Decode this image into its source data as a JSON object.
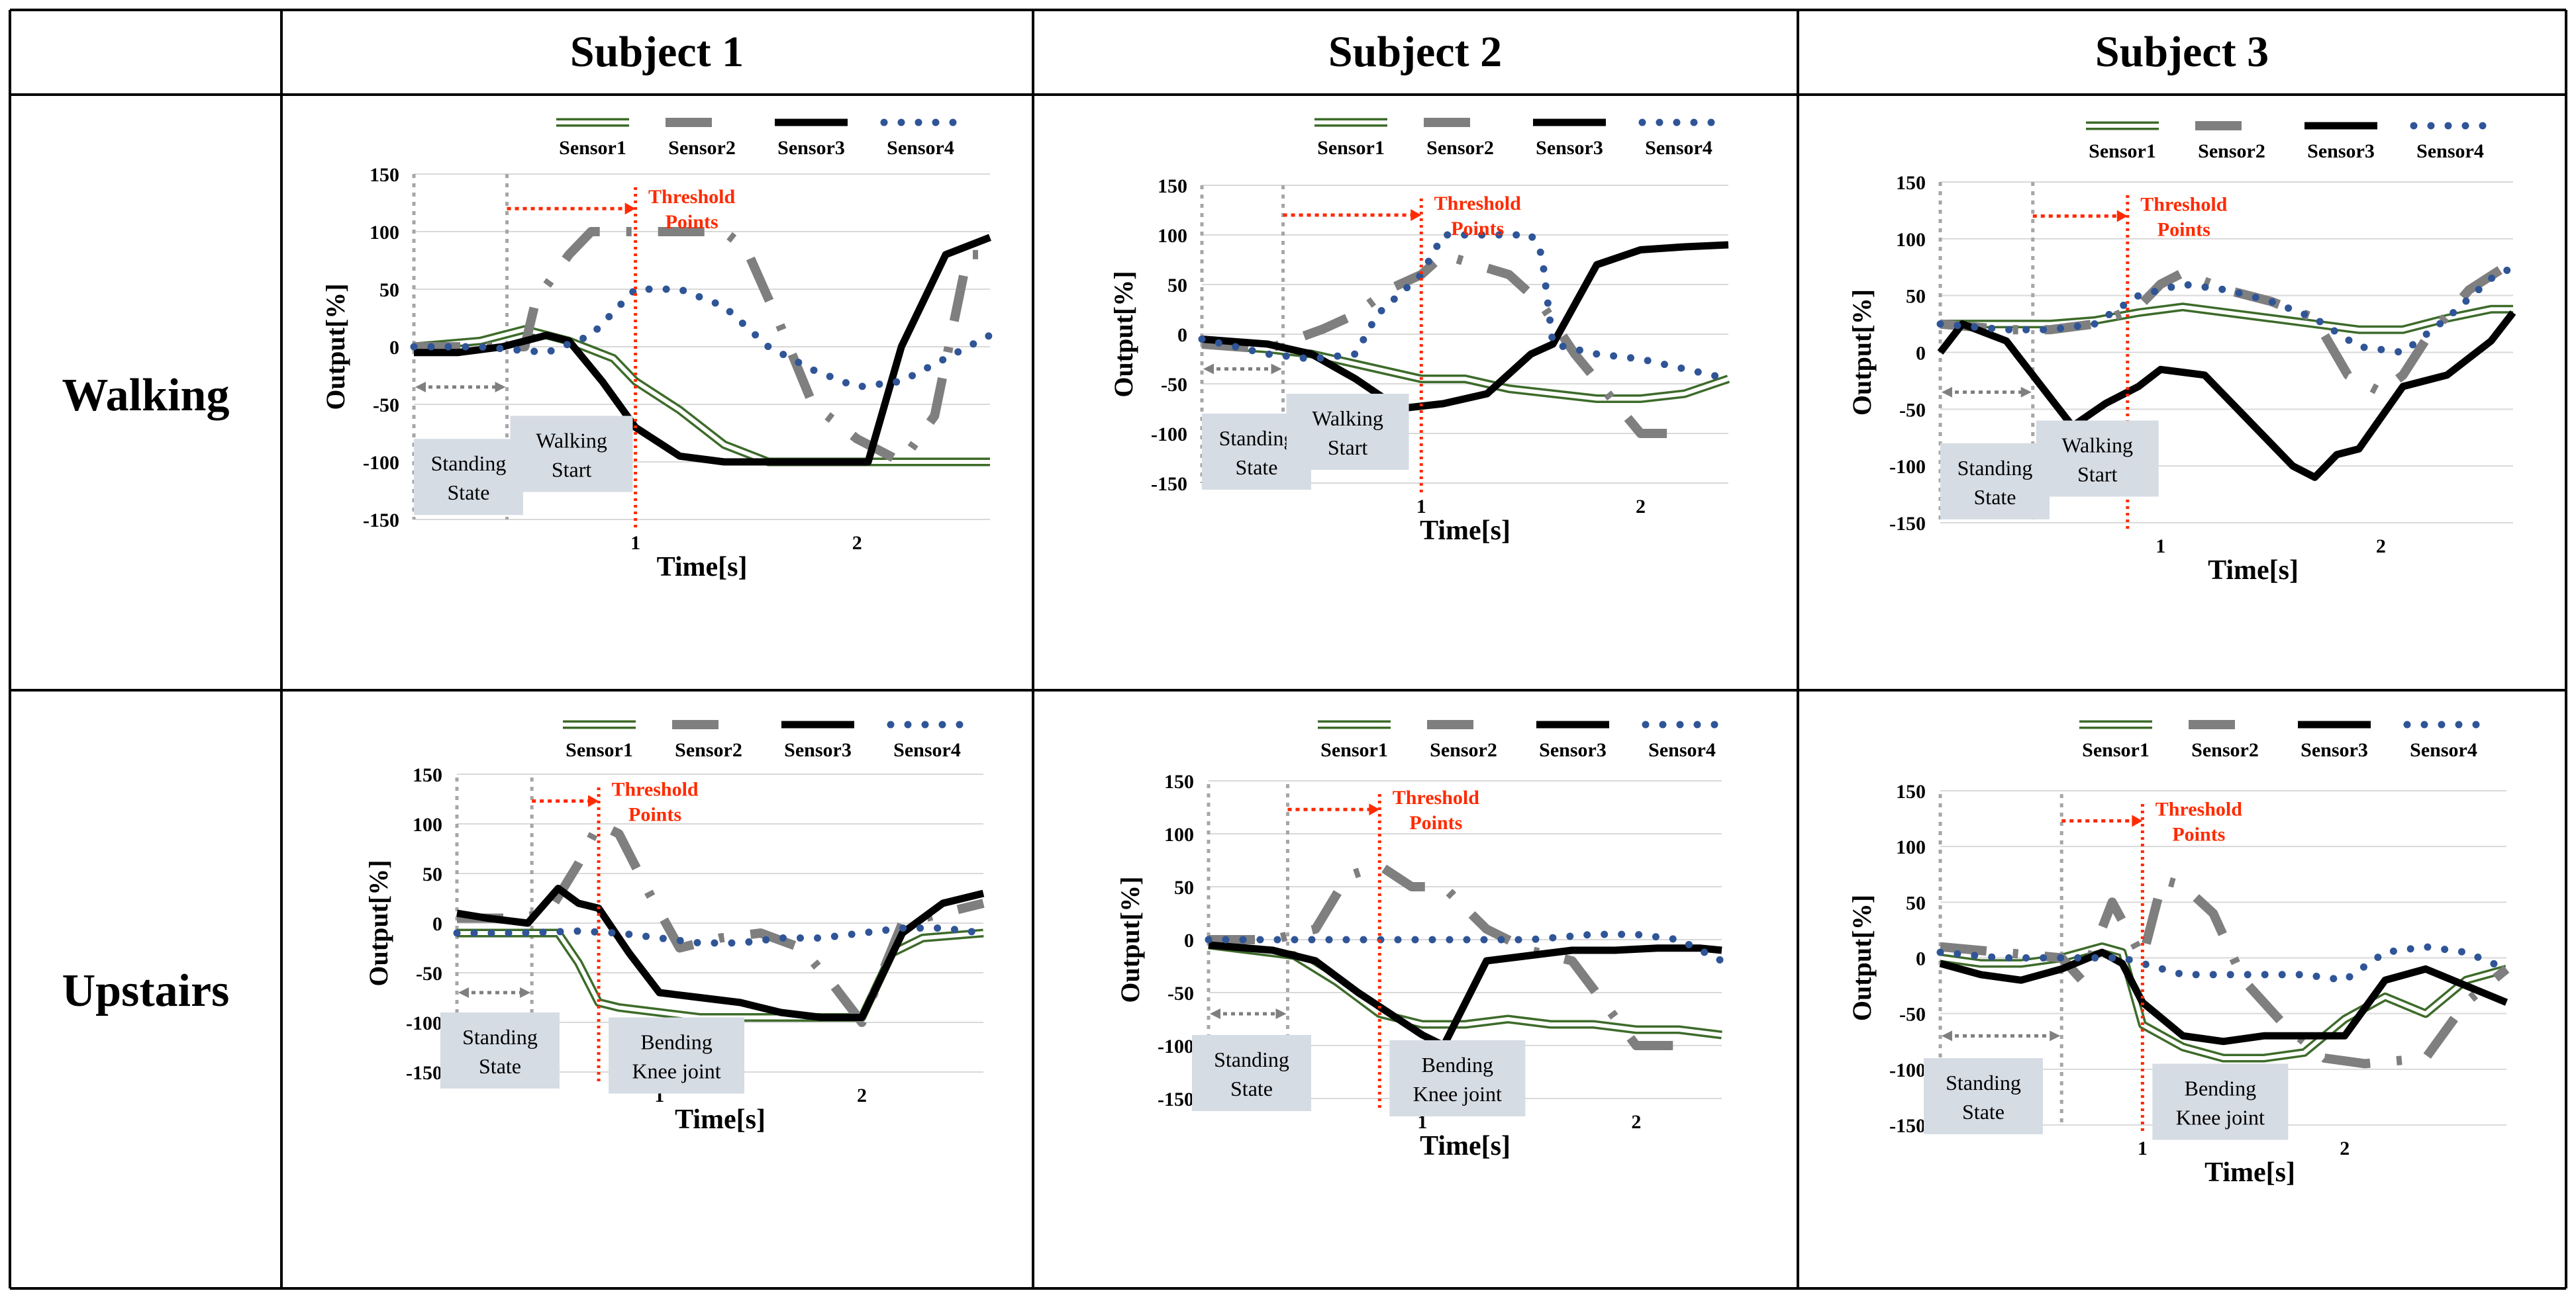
{
  "columns": [
    "",
    "Subject 1",
    "Subject 2",
    "Subject 3"
  ],
  "rows": [
    "Walking",
    "Upstairs"
  ],
  "legend": [
    "Sensor1",
    "Sensor2",
    "Sensor3",
    "Sensor4"
  ],
  "colors": {
    "sensor1": "#3d6b2a",
    "sensor2": "#7f7f7f",
    "sensor3": "#000000",
    "sensor4": "#2f5597",
    "threshold": "#ff2a00",
    "annotation_box": "#d6dce4",
    "grid": "#d9d9d9"
  },
  "chart_data": [
    {
      "type": "line",
      "panel": "Walking / Subject 1",
      "xlabel": "Time[s]",
      "ylabel": "Output[%]",
      "ylim": [
        -150,
        150
      ],
      "yticks": [
        150,
        100,
        50,
        0,
        -50,
        -100,
        -150
      ],
      "xlim": [
        0,
        2.6
      ],
      "xticks": [
        1,
        2
      ],
      "standing_x": 0,
      "start_x": 0.42,
      "threshold_x": 1.0,
      "threshold_label": [
        "Threshold",
        "Points"
      ],
      "box1": [
        "Standing",
        "State"
      ],
      "box2": [
        "Walking",
        "Start"
      ],
      "series": [
        {
          "name": "Sensor1",
          "x": [
            0,
            0.3,
            0.5,
            0.7,
            0.9,
            1.0,
            1.2,
            1.4,
            1.6,
            1.8,
            2.0,
            2.2,
            2.6
          ],
          "y": [
            0,
            5,
            15,
            5,
            -10,
            -30,
            -55,
            -85,
            -100,
            -100,
            -100,
            -100,
            -100
          ]
        },
        {
          "name": "Sensor2",
          "x": [
            0,
            0.3,
            0.5,
            0.55,
            0.7,
            0.8,
            1.0,
            1.2,
            1.4,
            1.5,
            1.65,
            1.8,
            2.0,
            2.1,
            2.2,
            2.35,
            2.5,
            2.6
          ],
          "y": [
            0,
            0,
            0,
            40,
            80,
            100,
            100,
            100,
            100,
            85,
            20,
            -50,
            -80,
            -90,
            -100,
            -60,
            80,
            80
          ]
        },
        {
          "name": "Sensor3",
          "x": [
            0,
            0.2,
            0.4,
            0.6,
            0.7,
            0.85,
            1.0,
            1.2,
            1.4,
            1.6,
            1.8,
            2.0,
            2.05,
            2.2,
            2.4,
            2.6
          ],
          "y": [
            -5,
            -5,
            0,
            10,
            5,
            -30,
            -70,
            -95,
            -100,
            -100,
            -100,
            -100,
            -100,
            0,
            80,
            95
          ]
        },
        {
          "name": "Sensor4",
          "x": [
            0,
            0.3,
            0.6,
            0.8,
            1.0,
            1.2,
            1.4,
            1.6,
            1.8,
            2.0,
            2.2,
            2.4,
            2.6
          ],
          "y": [
            0,
            0,
            -5,
            10,
            50,
            50,
            35,
            0,
            -20,
            -35,
            -30,
            -10,
            10
          ]
        }
      ]
    },
    {
      "type": "line",
      "panel": "Walking / Subject 2",
      "xlabel": "Time[s]",
      "ylabel": "Output[%]",
      "ylim": [
        -150,
        150
      ],
      "yticks": [
        150,
        100,
        50,
        0,
        -50,
        -100,
        -150
      ],
      "xlim": [
        0,
        2.4
      ],
      "xticks": [
        1,
        2
      ],
      "standing_x": 0,
      "start_x": 0.37,
      "threshold_x": 1.0,
      "threshold_label": [
        "Threshold",
        "Points"
      ],
      "box1": [
        "Standing",
        "State"
      ],
      "box2": [
        "Walking",
        "Start"
      ],
      "series": [
        {
          "name": "Sensor1",
          "x": [
            0,
            0.3,
            0.5,
            0.7,
            0.9,
            1.0,
            1.2,
            1.4,
            1.6,
            1.8,
            2.0,
            2.2,
            2.4
          ],
          "y": [
            -10,
            -15,
            -20,
            -30,
            -40,
            -45,
            -45,
            -55,
            -60,
            -65,
            -65,
            -60,
            -45
          ]
        },
        {
          "name": "Sensor2",
          "x": [
            0,
            0.3,
            0.55,
            0.7,
            0.85,
            1.0,
            1.1,
            1.25,
            1.4,
            1.55,
            1.7,
            1.85,
            2.0,
            2.2
          ],
          "y": [
            -10,
            -15,
            5,
            20,
            45,
            60,
            80,
            70,
            60,
            30,
            -20,
            -60,
            -100,
            -100
          ]
        },
        {
          "name": "Sensor3",
          "x": [
            0,
            0.3,
            0.5,
            0.7,
            0.9,
            1.1,
            1.3,
            1.5,
            1.6,
            1.8,
            2.0,
            2.2,
            2.4
          ],
          "y": [
            -5,
            -10,
            -20,
            -45,
            -75,
            -70,
            -60,
            -20,
            -10,
            70,
            85,
            88,
            90
          ]
        },
        {
          "name": "Sensor4",
          "x": [
            0,
            0.3,
            0.5,
            0.7,
            0.8,
            1.0,
            1.1,
            1.3,
            1.5,
            1.55,
            1.6,
            1.8,
            2.0,
            2.2,
            2.4
          ],
          "y": [
            -5,
            -20,
            -25,
            -20,
            20,
            60,
            100,
            100,
            100,
            80,
            -10,
            -20,
            -25,
            -35,
            -45
          ]
        }
      ]
    },
    {
      "type": "line",
      "panel": "Walking / Subject 3",
      "xlabel": "Time[s]",
      "ylabel": "Output[%]",
      "ylim": [
        -150,
        150
      ],
      "yticks": [
        150,
        100,
        50,
        0,
        -50,
        -100,
        -150
      ],
      "xlim": [
        0,
        2.6
      ],
      "xticks": [
        1,
        2
      ],
      "standing_x": 0,
      "start_x": 0.42,
      "threshold_x": 0.85,
      "threshold_label": [
        "Threshold",
        "Points"
      ],
      "box1": [
        "Standing",
        "State"
      ],
      "box2": [
        "Walking",
        "Start"
      ],
      "series": [
        {
          "name": "Sensor1",
          "x": [
            0,
            0.3,
            0.5,
            0.7,
            0.9,
            1.1,
            1.3,
            1.5,
            1.7,
            1.9,
            2.1,
            2.3,
            2.5,
            2.6
          ],
          "y": [
            25,
            25,
            25,
            28,
            35,
            40,
            35,
            30,
            25,
            20,
            20,
            30,
            38,
            38
          ]
        },
        {
          "name": "Sensor2",
          "x": [
            0,
            0.3,
            0.5,
            0.7,
            0.9,
            1.0,
            1.1,
            1.3,
            1.5,
            1.7,
            1.85,
            2.0,
            2.1,
            2.2,
            2.4,
            2.6
          ],
          "y": [
            25,
            20,
            20,
            25,
            40,
            60,
            70,
            55,
            45,
            30,
            -20,
            -35,
            -20,
            10,
            55,
            80
          ]
        },
        {
          "name": "Sensor3",
          "x": [
            0,
            0.1,
            0.3,
            0.5,
            0.6,
            0.75,
            0.9,
            1.0,
            1.2,
            1.4,
            1.6,
            1.7,
            1.8,
            1.9,
            2.1,
            2.3,
            2.5,
            2.6
          ],
          "y": [
            0,
            25,
            10,
            -40,
            -65,
            -45,
            -30,
            -15,
            -20,
            -60,
            -100,
            -110,
            -90,
            -85,
            -30,
            -20,
            10,
            35
          ]
        },
        {
          "name": "Sensor4",
          "x": [
            0,
            0.3,
            0.5,
            0.7,
            0.9,
            1.1,
            1.3,
            1.5,
            1.7,
            1.9,
            2.1,
            2.3,
            2.5,
            2.6
          ],
          "y": [
            25,
            20,
            20,
            25,
            50,
            60,
            55,
            45,
            30,
            5,
            0,
            30,
            65,
            75
          ]
        }
      ]
    },
    {
      "type": "line",
      "panel": "Upstairs / Subject 1",
      "xlabel": "Time[s]",
      "ylabel": "Output[%]",
      "ylim": [
        -150,
        150
      ],
      "yticks": [
        150,
        100,
        50,
        0,
        -50,
        -100,
        -150
      ],
      "xlim": [
        0,
        2.6
      ],
      "xticks": [
        1,
        2
      ],
      "standing_x": 0,
      "start_x": 0.37,
      "threshold_x": 0.7,
      "threshold_label": [
        "Threshold",
        "Points"
      ],
      "box1": [
        "Standing",
        "State"
      ],
      "box2": [
        "Bending",
        "Knee joint"
      ],
      "series": [
        {
          "name": "Sensor1",
          "x": [
            0,
            0.3,
            0.5,
            0.6,
            0.7,
            0.8,
            1.0,
            1.2,
            1.4,
            1.6,
            1.8,
            2.0,
            2.15,
            2.3,
            2.6
          ],
          "y": [
            -10,
            -10,
            -10,
            -40,
            -80,
            -85,
            -90,
            -95,
            -95,
            -95,
            -95,
            -95,
            -30,
            -15,
            -10
          ]
        },
        {
          "name": "Sensor2",
          "x": [
            0,
            0.3,
            0.45,
            0.6,
            0.7,
            0.8,
            0.95,
            1.1,
            1.3,
            1.5,
            1.7,
            1.85,
            2.0,
            2.2,
            2.6
          ],
          "y": [
            5,
            5,
            10,
            60,
            100,
            90,
            30,
            -25,
            -15,
            -10,
            -25,
            -60,
            -100,
            0,
            20
          ]
        },
        {
          "name": "Sensor3",
          "x": [
            0,
            0.15,
            0.35,
            0.5,
            0.6,
            0.7,
            0.85,
            1.0,
            1.2,
            1.4,
            1.6,
            1.8,
            2.0,
            2.2,
            2.4,
            2.6
          ],
          "y": [
            10,
            5,
            0,
            35,
            20,
            15,
            -30,
            -70,
            -75,
            -80,
            -90,
            -95,
            -95,
            -10,
            20,
            30
          ]
        },
        {
          "name": "Sensor4",
          "x": [
            0,
            0.3,
            0.6,
            0.8,
            1.0,
            1.2,
            1.4,
            1.6,
            1.8,
            2.0,
            2.2,
            2.4,
            2.6
          ],
          "y": [
            -10,
            -10,
            -8,
            -10,
            -15,
            -20,
            -20,
            -15,
            -15,
            -10,
            -5,
            -5,
            -10
          ]
        }
      ]
    },
    {
      "type": "line",
      "panel": "Upstairs / Subject 2",
      "xlabel": "Time[s]",
      "ylabel": "Output[%]",
      "ylim": [
        -150,
        150
      ],
      "yticks": [
        150,
        100,
        50,
        0,
        -50,
        -100,
        -150
      ],
      "xlim": [
        0,
        2.4
      ],
      "xticks": [
        1,
        2
      ],
      "standing_x": 0,
      "start_x": 0.37,
      "threshold_x": 0.8,
      "threshold_label": [
        "Threshold",
        "Points"
      ],
      "box1": [
        "Standing",
        "State"
      ],
      "box2": [
        "Bending",
        "Knee joint"
      ],
      "series": [
        {
          "name": "Sensor1",
          "x": [
            0,
            0.2,
            0.4,
            0.6,
            0.8,
            1.0,
            1.2,
            1.4,
            1.6,
            1.8,
            2.0,
            2.2,
            2.4
          ],
          "y": [
            -5,
            -10,
            -15,
            -40,
            -70,
            -80,
            -80,
            -75,
            -80,
            -80,
            -85,
            -85,
            -90
          ]
        },
        {
          "name": "Sensor2",
          "x": [
            0,
            0.3,
            0.5,
            0.65,
            0.8,
            0.95,
            1.1,
            1.3,
            1.5,
            1.7,
            1.85,
            2.0,
            2.2
          ],
          "y": [
            0,
            0,
            10,
            60,
            70,
            50,
            50,
            10,
            -10,
            -20,
            -60,
            -100,
            -100
          ]
        },
        {
          "name": "Sensor3",
          "x": [
            0,
            0.3,
            0.5,
            0.7,
            0.85,
            1.0,
            1.1,
            1.3,
            1.5,
            1.7,
            1.9,
            2.1,
            2.3,
            2.4
          ],
          "y": [
            -5,
            -10,
            -20,
            -50,
            -70,
            -90,
            -100,
            -20,
            -15,
            -10,
            -10,
            -8,
            -8,
            -10
          ]
        },
        {
          "name": "Sensor4",
          "x": [
            0,
            0.3,
            0.6,
            0.9,
            1.2,
            1.5,
            1.8,
            2.0,
            2.2,
            2.4
          ],
          "y": [
            0,
            0,
            0,
            0,
            0,
            0,
            5,
            5,
            0,
            -20
          ]
        }
      ]
    },
    {
      "type": "line",
      "panel": "Upstairs / Subject 3",
      "xlabel": "Time[s]",
      "ylabel": "Output[%]",
      "ylim": [
        -150,
        150
      ],
      "yticks": [
        150,
        100,
        50,
        0,
        -50,
        -100,
        -150
      ],
      "xlim": [
        0,
        2.8
      ],
      "xticks": [
        1,
        2
      ],
      "standing_x": 0,
      "start_x": 0.6,
      "threshold_x": 1.0,
      "threshold_label": [
        "Threshold",
        "Points"
      ],
      "box1": [
        "Standing",
        "State"
      ],
      "box2": [
        "Bending",
        "Knee joint"
      ],
      "series": [
        {
          "name": "Sensor1",
          "x": [
            0,
            0.2,
            0.4,
            0.6,
            0.8,
            0.9,
            1.0,
            1.2,
            1.4,
            1.6,
            1.8,
            2.0,
            2.2,
            2.4,
            2.6,
            2.8
          ],
          "y": [
            0,
            -5,
            -5,
            0,
            10,
            5,
            -60,
            -80,
            -90,
            -90,
            -85,
            -55,
            -35,
            -50,
            -20,
            -10
          ]
        },
        {
          "name": "Sensor2",
          "x": [
            0,
            0.3,
            0.6,
            0.7,
            0.85,
            1.0,
            1.1,
            1.2,
            1.35,
            1.5,
            1.7,
            1.9,
            2.1,
            2.4,
            2.6,
            2.8
          ],
          "y": [
            10,
            5,
            0,
            -20,
            50,
            0,
            70,
            65,
            40,
            -20,
            -60,
            -90,
            -95,
            -90,
            -40,
            -10
          ]
        },
        {
          "name": "Sensor3",
          "x": [
            0,
            0.2,
            0.4,
            0.6,
            0.8,
            0.9,
            1.0,
            1.2,
            1.4,
            1.6,
            1.8,
            2.0,
            2.2,
            2.4,
            2.6,
            2.8
          ],
          "y": [
            -5,
            -15,
            -20,
            -10,
            5,
            -5,
            -40,
            -70,
            -75,
            -70,
            -70,
            -70,
            -20,
            -10,
            -25,
            -40
          ]
        },
        {
          "name": "Sensor4",
          "x": [
            0,
            0.3,
            0.6,
            0.9,
            1.2,
            1.5,
            1.8,
            2.0,
            2.2,
            2.4,
            2.6,
            2.8
          ],
          "y": [
            5,
            0,
            0,
            0,
            -15,
            -15,
            -15,
            -20,
            5,
            10,
            5,
            -10
          ]
        }
      ]
    }
  ]
}
